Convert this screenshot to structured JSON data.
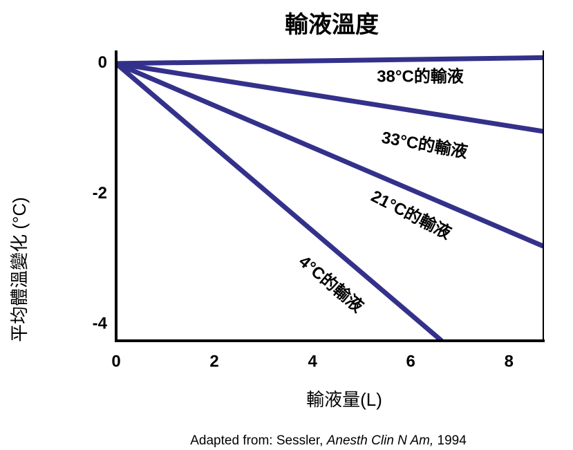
{
  "chart_data": {
    "type": "line",
    "title": "輸液溫度",
    "xlabel": "輸液量(L)",
    "ylabel": "平均體溫變化 (°C)",
    "series": [
      {
        "name": "38°C的輸液",
        "color": "#33318a",
        "x": [
          0,
          8.7
        ],
        "values": [
          0,
          0.09
        ]
      },
      {
        "name": "33°C的輸液",
        "color": "#33318a",
        "x": [
          0,
          8.7
        ],
        "values": [
          0,
          -1.04
        ]
      },
      {
        "name": "21°C的輸液",
        "color": "#33318a",
        "x": [
          0,
          8.7
        ],
        "values": [
          0,
          -2.8
        ]
      },
      {
        "name": "4°C的輸液",
        "color": "#33318a",
        "x": [
          0,
          6.63
        ],
        "values": [
          0,
          -4.25
        ]
      }
    ],
    "xlim": [
      0,
      8.7
    ],
    "ylim": [
      -4.25,
      0.2
    ],
    "xticks": [
      0,
      2,
      4,
      6,
      8
    ],
    "yticks": [
      0,
      -2,
      -4
    ],
    "grid": false,
    "source": {
      "prefix": "Adapted from: Sessler, ",
      "journal": "Anesth Clin N Am,",
      "year": " 1994"
    }
  }
}
